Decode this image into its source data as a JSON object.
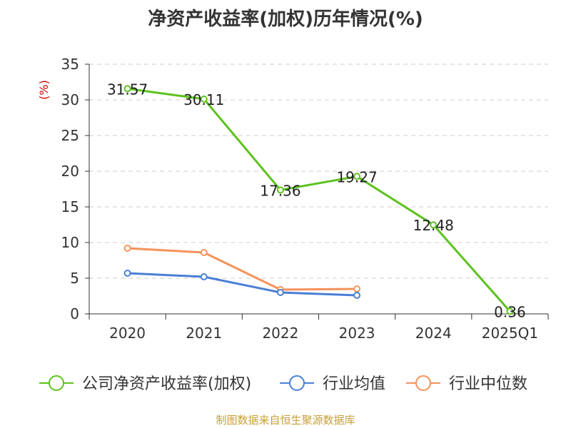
{
  "chart_data": {
    "type": "line",
    "title": "净资产收益率(加权)历年情况(%)",
    "ylabel": "(%)",
    "categories": [
      "2020",
      "2021",
      "2022",
      "2023",
      "2024",
      "2025Q1"
    ],
    "ylim": [
      0,
      35
    ],
    "yticks": [
      "0",
      "5",
      "10",
      "15",
      "20",
      "25",
      "30",
      "35"
    ],
    "grid": true,
    "legend_position": "bottom",
    "series": [
      {
        "name": "公司净资产收益率(加权)",
        "color": "#5dc21f",
        "values": [
          31.57,
          30.11,
          17.36,
          19.27,
          12.48,
          0.36
        ],
        "labels": [
          "31.57",
          "30.11",
          "17.36",
          "19.27",
          "12.48",
          "0.36"
        ]
      },
      {
        "name": "行业均值",
        "color": "#4a7fd6",
        "values": [
          5.7,
          5.2,
          3.0,
          2.6,
          null,
          null
        ]
      },
      {
        "name": "行业中位数",
        "color": "#f5925a",
        "values": [
          9.2,
          8.6,
          3.4,
          3.5,
          null,
          null
        ]
      }
    ]
  },
  "source_note": "制图数据来自恒生聚源数据库"
}
